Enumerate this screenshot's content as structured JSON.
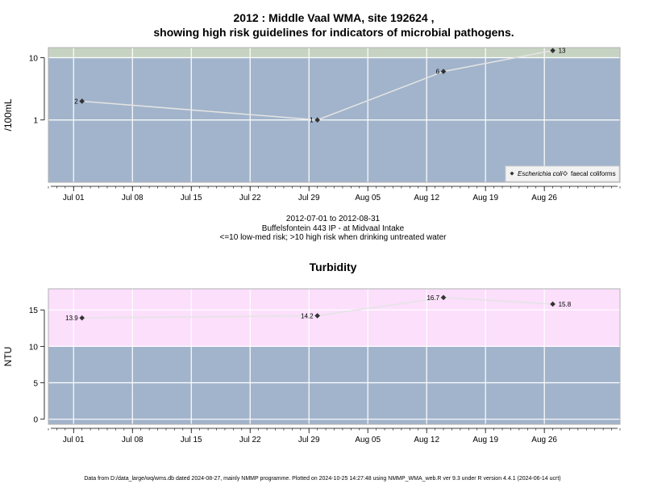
{
  "chart_data": [
    {
      "type": "line",
      "title_line1": "2012 : Middle Vaal WMA, site 192624 ,",
      "title_line2": "showing high risk guidelines for indicators of microbial pathogens.",
      "ylabel": "/100mL",
      "yscale": "log",
      "ylim": [
        0.1,
        14.5
      ],
      "yticks": [
        1,
        10
      ],
      "ytick_labels": [
        "1",
        "10"
      ],
      "xlim": [
        "2012-06-28",
        "2012-09-04"
      ],
      "xticks": [
        "2012-07-01",
        "2012-07-08",
        "2012-07-15",
        "2012-07-22",
        "2012-07-29",
        "2012-08-05",
        "2012-08-12",
        "2012-08-19",
        "2012-08-26"
      ],
      "xtick_labels": [
        "Jul 01",
        "Jul 08",
        "Jul 15",
        "Jul 22",
        "Jul 29",
        "Aug 05",
        "Aug 12",
        "Aug 19",
        "Aug 26"
      ],
      "grid": true,
      "bands": [
        {
          "from": 10,
          "to": 14.5,
          "color": "#c7d3c2"
        },
        {
          "from": 0.1,
          "to": 10,
          "color": "#a2b4cb"
        }
      ],
      "series": [
        {
          "name": "Escherichia coli",
          "x": [
            "2012-07-02",
            "2012-07-30",
            "2012-08-14",
            "2012-08-27"
          ],
          "values": [
            2,
            1,
            6,
            13
          ],
          "labels": [
            "2",
            "1",
            "6",
            "13"
          ]
        }
      ],
      "legend": {
        "placement": "bottom-right",
        "items": [
          "Escherichia coli",
          "faecal coliforms"
        ]
      },
      "subtitle_lines": [
        "2012-07-01 to 2012-08-31",
        "Buffelsfontein 443 IP - at Midvaal Intake",
        "<=10 low-med risk; >10 high risk when drinking untreated water"
      ]
    },
    {
      "type": "line",
      "title": "Turbidity",
      "ylabel": "NTU",
      "ylim": [
        -0.7,
        17.9
      ],
      "yticks": [
        0,
        5,
        10,
        15
      ],
      "ytick_labels": [
        "0",
        "5",
        "10",
        "15"
      ],
      "xlim": [
        "2012-06-28",
        "2012-09-04"
      ],
      "xticks": [
        "2012-07-01",
        "2012-07-08",
        "2012-07-15",
        "2012-07-22",
        "2012-07-29",
        "2012-08-05",
        "2012-08-12",
        "2012-08-19",
        "2012-08-26"
      ],
      "xtick_labels": [
        "Jul 01",
        "Jul 08",
        "Jul 15",
        "Jul 22",
        "Jul 29",
        "Aug 05",
        "Aug 12",
        "Aug 19",
        "Aug 26"
      ],
      "grid": true,
      "bands": [
        {
          "from": 10,
          "to": 17.9,
          "color": "#fbdffb"
        },
        {
          "from": -0.7,
          "to": 10,
          "color": "#a2b4cb"
        }
      ],
      "series": [
        {
          "name": "",
          "x": [
            "2012-07-02",
            "2012-07-30",
            "2012-08-14",
            "2012-08-27"
          ],
          "values": [
            13.9,
            14.2,
            16.7,
            15.8
          ],
          "labels": [
            "13.9",
            "14.2",
            "16.7",
            "15.8"
          ]
        }
      ]
    }
  ],
  "footer": "Data from D:/data_large/wq/wms.db dated 2024-08-27, mainly NMMP programme. Plotted on 2024-10-25 14:27:48 using NMMP_WMA_web.R ver 9.3 under R version 4.4.1 (2024-06-14 ucrt)"
}
